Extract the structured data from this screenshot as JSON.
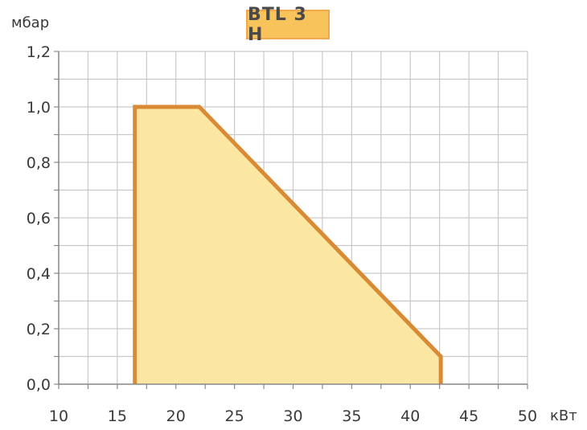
{
  "chart_data": {
    "type": "area",
    "title": "BTL 3 H",
    "xlabel": "кВт",
    "ylabel": "мбар",
    "xlim": [
      10,
      50
    ],
    "ylim": [
      0,
      1.2
    ],
    "x_ticks": [
      "10",
      "15",
      "20",
      "25",
      "30",
      "35",
      "40",
      "45",
      "50"
    ],
    "y_ticks": [
      "0,0",
      "0,2",
      "0,4",
      "0,6",
      "0,8",
      "1,0",
      "1,2"
    ],
    "x_step_minor": 2.5,
    "y_step_minor": 0.1,
    "grid": true,
    "series": [
      {
        "x": [
          16.5,
          16.5,
          22.0,
          42.6,
          42.6
        ],
        "y": [
          0.0,
          1.0,
          1.0,
          0.1,
          0.0
        ]
      }
    ],
    "colors": {
      "line": "#d98a34",
      "fill": "#fbe7a1",
      "grid": "#c9c9c9",
      "title_bg": "#f7c35a",
      "title_border": "#f1a84e"
    }
  }
}
